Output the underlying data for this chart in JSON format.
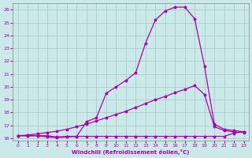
{
  "xlabel": "Windchill (Refroidissement éolien,°C)",
  "xlim": [
    -0.5,
    23.5
  ],
  "ylim": [
    15.8,
    26.5
  ],
  "xticks": [
    0,
    1,
    2,
    3,
    4,
    5,
    6,
    7,
    8,
    9,
    10,
    11,
    12,
    13,
    14,
    15,
    16,
    17,
    18,
    19,
    20,
    21,
    22,
    23
  ],
  "yticks": [
    16,
    17,
    18,
    19,
    20,
    21,
    22,
    23,
    24,
    25,
    26
  ],
  "bg_color": "#cce9e9",
  "line_color": "#aa00aa",
  "grid_color": "#aacccc",
  "curve1_x": [
    0,
    1,
    2,
    3,
    4,
    5,
    6,
    7,
    8,
    9,
    10,
    11,
    12,
    13,
    14,
    15,
    16,
    17,
    18,
    19,
    20,
    21,
    22,
    23
  ],
  "curve1_y": [
    16.2,
    16.2,
    16.2,
    16.2,
    16.1,
    16.15,
    16.15,
    16.15,
    16.15,
    16.15,
    16.15,
    16.15,
    16.15,
    16.15,
    16.15,
    16.15,
    16.15,
    16.15,
    16.15,
    16.15,
    16.15,
    16.15,
    16.4,
    16.5
  ],
  "curve2_x": [
    0,
    1,
    2,
    3,
    4,
    5,
    6,
    7,
    8,
    9,
    10,
    11,
    12,
    13,
    14,
    15,
    16,
    17,
    18,
    19,
    20,
    21,
    22,
    23
  ],
  "curve2_y": [
    16.2,
    16.25,
    16.35,
    16.45,
    16.55,
    16.7,
    16.9,
    17.1,
    17.35,
    17.6,
    17.85,
    18.1,
    18.4,
    18.7,
    19.0,
    19.25,
    19.55,
    19.8,
    20.1,
    19.4,
    16.9,
    16.6,
    16.5,
    16.45
  ],
  "curve3_x": [
    0,
    1,
    2,
    3,
    4,
    5,
    6,
    7,
    8,
    9,
    10,
    11,
    12,
    13,
    14,
    15,
    16,
    17,
    18,
    19,
    20,
    21,
    22,
    23
  ],
  "curve3_y": [
    16.2,
    16.2,
    16.2,
    16.1,
    16.05,
    16.1,
    16.15,
    17.3,
    17.6,
    19.5,
    20.0,
    20.5,
    21.1,
    23.4,
    25.2,
    25.9,
    26.2,
    26.2,
    25.3,
    21.6,
    17.1,
    16.7,
    16.6,
    16.5
  ]
}
